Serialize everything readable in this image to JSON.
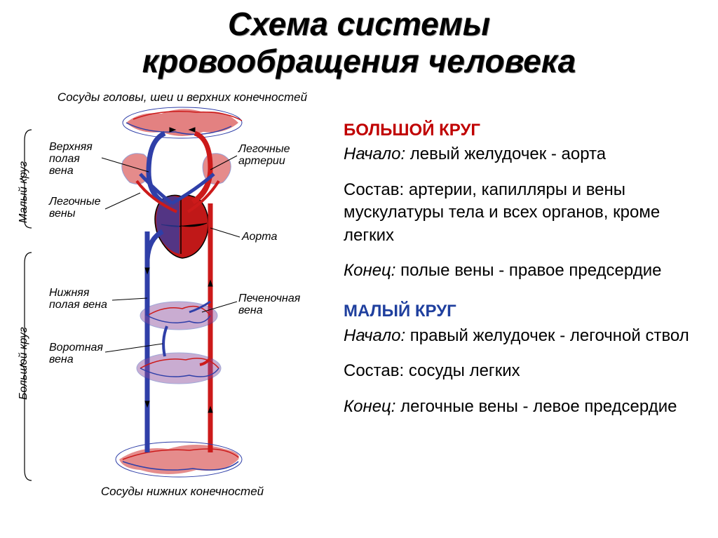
{
  "title_line1": "Схема системы",
  "title_line2": "кровообращения человека",
  "diagram": {
    "top_caption": "Сосуды головы, шеи и верхних конечностей",
    "bottom_caption": "Сосуды нижних конечностей",
    "labels": {
      "upper_vena": "Верхняя\nполая\nвена",
      "pulm_veins": "Легочные\nвены",
      "lower_vena": "Нижняя\nполая вена",
      "portal_vein": "Воротная\nвена",
      "pulm_arteries": "Легочные\nартерии",
      "aorta": "Аорта",
      "hepatic_vein": "Печеночная\nвена"
    },
    "bracket_small": "Малый круг",
    "bracket_large": "Большой круг",
    "colors": {
      "artery": "#cc1a1a",
      "vein": "#2f3fa8",
      "capillary_mix": "#7a3fa0",
      "outline": "#000000",
      "bg": "#ffffff"
    }
  },
  "big_circle": {
    "title": "БОЛЬШОЙ КРУГ",
    "start_label": "Начало:",
    "start_text": " левый желудочек - аорта",
    "composition_label": "Состав:",
    "composition_text": " артерии, капилляры и вены мускулатуры тела и всех органов, кроме легких",
    "end_label": "Конец:",
    "end_text": " полые вены - правое предсердие"
  },
  "small_circle": {
    "title": "МАЛЫЙ КРУГ",
    "start_label": "Начало:",
    "start_text": " правый желудочек - легочной ствол",
    "composition_label": "Состав:",
    "composition_text": " сосуды легких",
    "end_label": "Конец:",
    "end_text": " легочные вены - левое предсердие"
  },
  "style": {
    "title_fontsize": 46,
    "body_fontsize": 24,
    "label_fontsize": 16,
    "red": "#c00000",
    "blue": "#1f3f9e",
    "black": "#000000",
    "bg": "#ffffff"
  }
}
